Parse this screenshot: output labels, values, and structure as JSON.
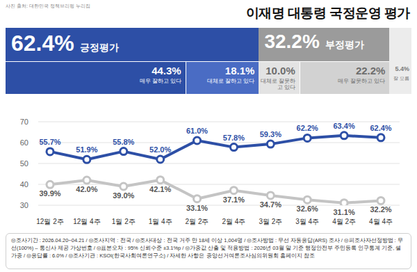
{
  "header": {
    "title": "이재명 대통령 국정운영 평가",
    "source": "사진 출처: 대한민국 정책브리핑 누리집"
  },
  "summary": {
    "positive": {
      "label": "긍정평가",
      "value": 62.4,
      "value_label": "62.4%",
      "color": "#2d4fa6",
      "parts": [
        {
          "label": "매우 잘하고 있다",
          "value": 44.3,
          "value_label": "44.3%",
          "color": "#2d4fa6"
        },
        {
          "label": "대체로 잘하고 있다",
          "value": 18.1,
          "value_label": "18.1%",
          "color": "#4a6cc4"
        }
      ]
    },
    "negative": {
      "label": "부정평가",
      "value": 32.2,
      "value_label": "32.2%",
      "color": "#9b9b9b",
      "parts": [
        {
          "label": "대체로 잘못하고 있다",
          "value": 10.0,
          "value_label": "10.0%",
          "color": "#e3e3e3"
        },
        {
          "label": "매우 잘못하고 있다",
          "value": 22.2,
          "value_label": "22.2%",
          "color": "#d2d2d2"
        }
      ]
    },
    "unknown": {
      "label": "잘 모름",
      "value": 5.4,
      "value_label": "5.4%",
      "color": "#ececec"
    }
  },
  "chart_data": {
    "type": "line",
    "categories": [
      "12월 2주",
      "12월 4주",
      "1월 2주",
      "1월 4주",
      "2월 2주",
      "2월 4주",
      "3월 2주",
      "3월 4주",
      "4월 2주",
      "4월 4주"
    ],
    "series": [
      {
        "color": "#2d4fa6",
        "marker": "circle",
        "values": [
          55.7,
          51.9,
          55.8,
          52.0,
          61.0,
          57.8,
          59.3,
          62.2,
          63.4,
          62.4
        ],
        "value_labels": [
          "55.7%",
          "51.9%",
          "55.8%",
          "52.0%",
          "61.0%",
          "57.8%",
          "59.3%",
          "62.2%",
          "63.4%",
          "62.4%"
        ]
      },
      {
        "color": "#c4c4c4",
        "marker": "circle",
        "values": [
          39.9,
          42.0,
          39.0,
          42.1,
          33.1,
          37.1,
          34.7,
          32.6,
          31.1,
          32.2
        ],
        "value_labels": [
          "39.9%",
          "42.0%",
          "39.0%",
          "42.1%",
          "33.1%",
          "37.1%",
          "34.7%",
          "32.6%",
          "31.1%",
          "32.2%"
        ]
      }
    ],
    "ylim": [
      30,
      70
    ],
    "yticks": [
      30,
      40,
      50,
      60,
      70
    ],
    "grid": true,
    "data_labels": true
  },
  "footnote": "◎조사기간 : 2026.04.20~04.21 / ◎조사지역 : 전국 / ◎조사대상 : 전국 거주 만 18세 이상 1,004명 / ◎조사방법 : 무선 자동응답(ARS) 조사 / ◎피조사자선정방법 : 무선(100%) – 통신사 제공 가상번호 / ◎표본오차 : 95% 신뢰수준 ±3.1%p / ◎가중값 산출 및 적용방법 : 2026년 03월 말 기준 행정안전부 주민등록 인구통계 기준, 셀가중 / ◎응답률 : 6.0% / ◎조사기관 : KSOI(한국사회여론연구소) / 자세한 사항은 중앙선거여론조사심의위원회 홈페이지 참조"
}
